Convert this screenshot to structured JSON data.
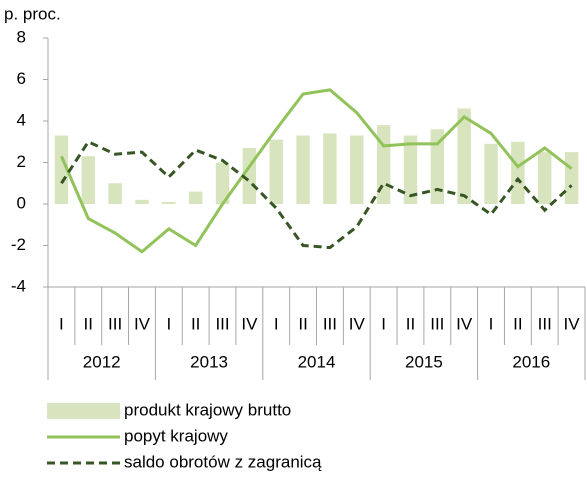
{
  "chart_data": {
    "type": "combo",
    "y_label": "p. proc.",
    "categories": [
      "I",
      "II",
      "III",
      "IV",
      "I",
      "II",
      "III",
      "IV",
      "I",
      "II",
      "III",
      "IV",
      "I",
      "II",
      "III",
      "IV",
      "I",
      "II",
      "III",
      "IV"
    ],
    "years": [
      "2012",
      "2013",
      "2014",
      "2015",
      "2016"
    ],
    "ylim": [
      -4,
      8
    ],
    "yticks": [
      -4,
      -2,
      0,
      2,
      4,
      6,
      8
    ],
    "grid": false,
    "legend": "bottom",
    "series": [
      {
        "name": "produkt krajowy brutto",
        "type": "bar",
        "color": "#d7e4bd",
        "values": [
          3.3,
          2.3,
          1.0,
          0.2,
          0.1,
          0.6,
          2.0,
          2.7,
          3.1,
          3.3,
          3.4,
          3.3,
          3.8,
          3.3,
          3.6,
          4.6,
          2.9,
          3.0,
          2.5,
          2.5
        ]
      },
      {
        "name": "popyt krajowy",
        "type": "line",
        "color": "#92c35a",
        "dash": false,
        "values": [
          2.3,
          -0.7,
          -1.4,
          -2.3,
          -1.2,
          -2.0,
          0.0,
          1.8,
          3.6,
          5.3,
          5.5,
          4.4,
          2.8,
          2.9,
          2.9,
          4.2,
          3.4,
          1.8,
          2.7,
          1.7
        ]
      },
      {
        "name": "saldo obrotów z zagranicą",
        "type": "line",
        "color": "#375623",
        "dash": true,
        "values": [
          1.0,
          3.0,
          2.4,
          2.5,
          1.3,
          2.6,
          2.1,
          1.1,
          -0.2,
          -2.0,
          -2.1,
          -1.1,
          1.0,
          0.4,
          0.7,
          0.4,
          -0.5,
          1.2,
          -0.3,
          0.9
        ]
      }
    ]
  }
}
